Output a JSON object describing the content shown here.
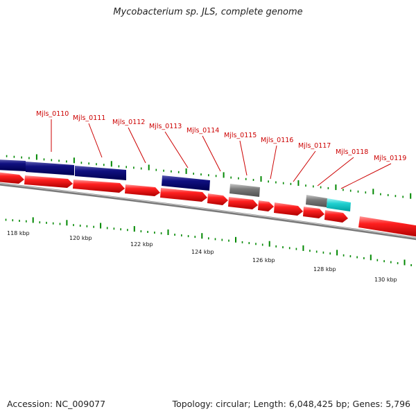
{
  "title": "Mycobacterium sp. JLS, complete genome",
  "footer": {
    "accession": "Accession: NC_009077",
    "info": "Topology: circular; Length: 6,048,425 bp; Genes: 5,796"
  },
  "colors": {
    "forward": "#ff0000",
    "reverse": "#000080",
    "grey_feature": "#808080",
    "cyan_feature": "#00cccc",
    "gc_skew": "#008800",
    "backbone": "#808080",
    "label": "#cc0000"
  },
  "diagram": {
    "gene_labels": [
      "Mjls_0110",
      "Mjls_0111",
      "Mjls_0112",
      "Mjls_0113",
      "Mjls_0114",
      "Mjls_0115",
      "Mjls_0116",
      "Mjls_0117",
      "Mjls_0118",
      "Mjls_0119"
    ],
    "scale_labels": [
      "118 kbp",
      "120 kbp",
      "122 kbp",
      "124 kbp",
      "126 kbp",
      "128 kbp",
      "130 kbp"
    ]
  }
}
